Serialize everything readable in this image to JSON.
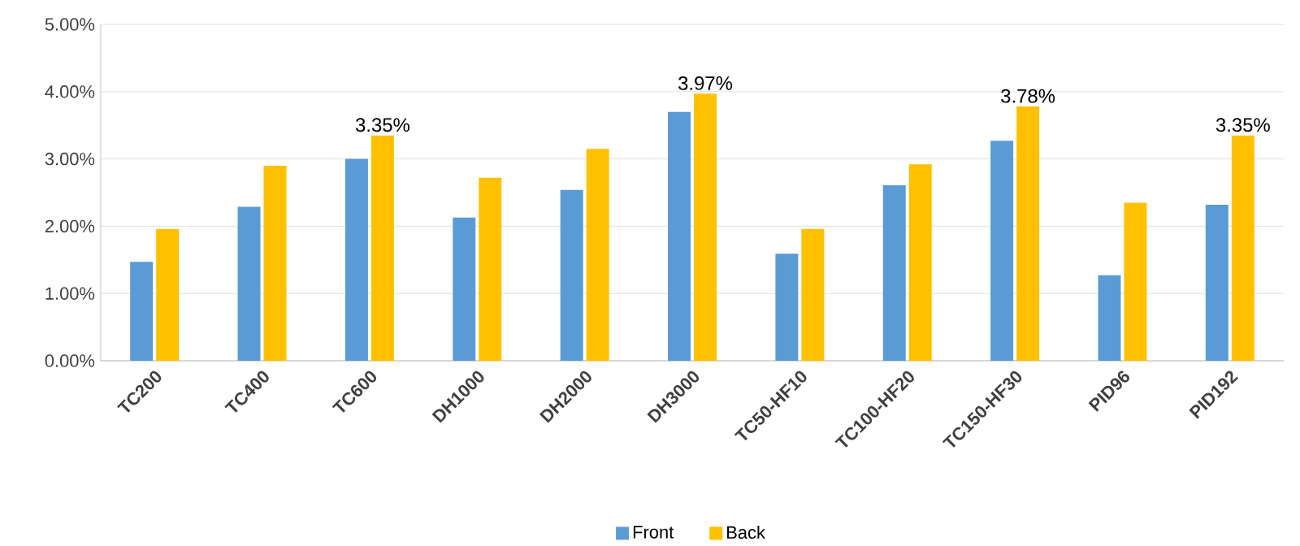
{
  "chart_data": {
    "type": "bar",
    "categories": [
      "TC200",
      "TC400",
      "TC600",
      "DH1000",
      "DH2000",
      "DH3000",
      "TC50-HF10",
      "TC100-HF20",
      "TC150-HF30",
      "PID96",
      "PID192"
    ],
    "series": [
      {
        "name": "Front",
        "color": "#5b9bd5",
        "values": [
          1.47,
          2.29,
          3.0,
          2.13,
          2.54,
          3.7,
          1.59,
          2.61,
          3.27,
          1.27,
          2.32
        ]
      },
      {
        "name": "Back",
        "color": "#ffc000",
        "values": [
          1.96,
          2.9,
          3.35,
          2.72,
          3.15,
          3.97,
          1.96,
          2.92,
          3.78,
          2.35,
          3.35
        ],
        "value_labels": [
          null,
          null,
          "3.35%",
          null,
          null,
          "3.97%",
          null,
          null,
          "3.78%",
          null,
          "3.35%"
        ]
      }
    ],
    "ylim": [
      0,
      5
    ],
    "yticks": [
      {
        "value": 0,
        "label": "0.00%"
      },
      {
        "value": 1,
        "label": "1.00%"
      },
      {
        "value": 2,
        "label": "2.00%"
      },
      {
        "value": 3,
        "label": "3.00%"
      },
      {
        "value": 4,
        "label": "4.00%"
      },
      {
        "value": 5,
        "label": "5.00%"
      }
    ],
    "grid": "y",
    "legend": "bottom"
  }
}
